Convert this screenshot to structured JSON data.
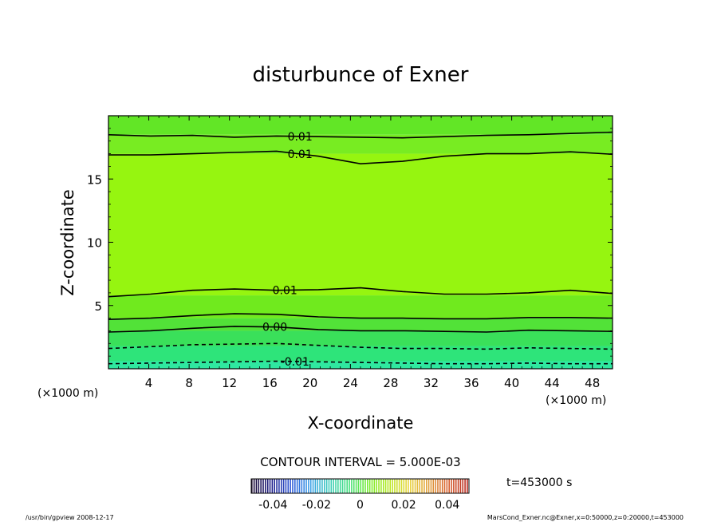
{
  "chart_data": {
    "type": "contour",
    "title": "disturbunce of Exner",
    "xlabel": "X-coordinate",
    "ylabel": "Z-coordinate",
    "x_units": "(×1000 m)",
    "y_units": "(×1000 m)",
    "xlim": [
      0,
      50
    ],
    "ylim": [
      0,
      20
    ],
    "x_ticks": [
      4,
      8,
      12,
      16,
      20,
      24,
      28,
      32,
      36,
      40,
      44,
      48
    ],
    "y_ticks": [
      5,
      10,
      15
    ],
    "contour_interval_text": "CONTOUR INTERVAL = 5.000E-03",
    "time_text": "t=453000 s",
    "colorbar": {
      "tick_labels": [
        "-0.04",
        "-0.02",
        "0",
        "0.02",
        "0.04"
      ],
      "tick_values": [
        -0.04,
        -0.02,
        0,
        0.02,
        0.04
      ],
      "range": [
        -0.05,
        0.05
      ],
      "colors": [
        "#1a0a2e",
        "#1f1f8a",
        "#2f58d8",
        "#3aa0e8",
        "#3ecfb8",
        "#44e07a",
        "#78ec2a",
        "#b7e820",
        "#e8d53c",
        "#e0a03a",
        "#d8602c",
        "#b8281e"
      ]
    },
    "contours": [
      {
        "label": "0.01",
        "z": [
          18.5,
          18.4,
          18.45,
          18.3,
          18.4,
          18.35,
          18.3,
          18.25,
          18.35,
          18.45,
          18.5,
          18.6,
          18.7
        ]
      },
      {
        "label": "0.01",
        "z": [
          16.9,
          16.9,
          17.0,
          17.1,
          17.2,
          16.8,
          16.2,
          16.4,
          16.8,
          17.0,
          17.0,
          17.15,
          16.95
        ]
      },
      {
        "label": "0.01",
        "z": [
          5.7,
          5.9,
          6.2,
          6.3,
          6.2,
          6.25,
          6.4,
          6.1,
          5.9,
          5.9,
          6.0,
          6.2,
          5.95
        ]
      },
      {
        "label": "",
        "z": [
          3.9,
          4.0,
          4.2,
          4.35,
          4.3,
          4.1,
          4.0,
          4.0,
          3.95,
          3.95,
          4.05,
          4.05,
          4.0
        ]
      },
      {
        "label": "0.00",
        "z": [
          2.9,
          3.0,
          3.2,
          3.35,
          3.3,
          3.1,
          3.0,
          3.0,
          2.95,
          2.9,
          3.05,
          3.0,
          2.95
        ]
      },
      {
        "label": "",
        "dashed": true,
        "z": [
          1.6,
          1.75,
          1.9,
          1.95,
          2.0,
          1.85,
          1.7,
          1.6,
          1.6,
          1.55,
          1.65,
          1.6,
          1.55
        ]
      },
      {
        "label": "-0.01",
        "dashed": true,
        "z": [
          0.4,
          0.45,
          0.5,
          0.55,
          0.6,
          0.55,
          0.5,
          0.45,
          0.4,
          0.4,
          0.45,
          0.4,
          0.4
        ]
      }
    ],
    "fill_bands": [
      {
        "from": 0.0,
        "to": 0.6,
        "color": "#2fe8a0"
      },
      {
        "from": 0.6,
        "to": 1.8,
        "color": "#2ee47a"
      },
      {
        "from": 1.8,
        "to": 3.0,
        "color": "#3ae05a"
      },
      {
        "from": 3.0,
        "to": 4.0,
        "color": "#52e238"
      },
      {
        "from": 4.0,
        "to": 5.8,
        "color": "#70ea1e"
      },
      {
        "from": 5.8,
        "to": 17.0,
        "color": "#96f510"
      },
      {
        "from": 17.0,
        "to": 18.5,
        "color": "#78ec22"
      },
      {
        "from": 18.5,
        "to": 20.0,
        "color": "#62e626"
      }
    ]
  },
  "footer": {
    "left": "/usr/bin/gpview   2008-12-17",
    "right": "MarsCond_Exner.nc@Exner,x=0:50000,z=0:20000,t=453000"
  }
}
